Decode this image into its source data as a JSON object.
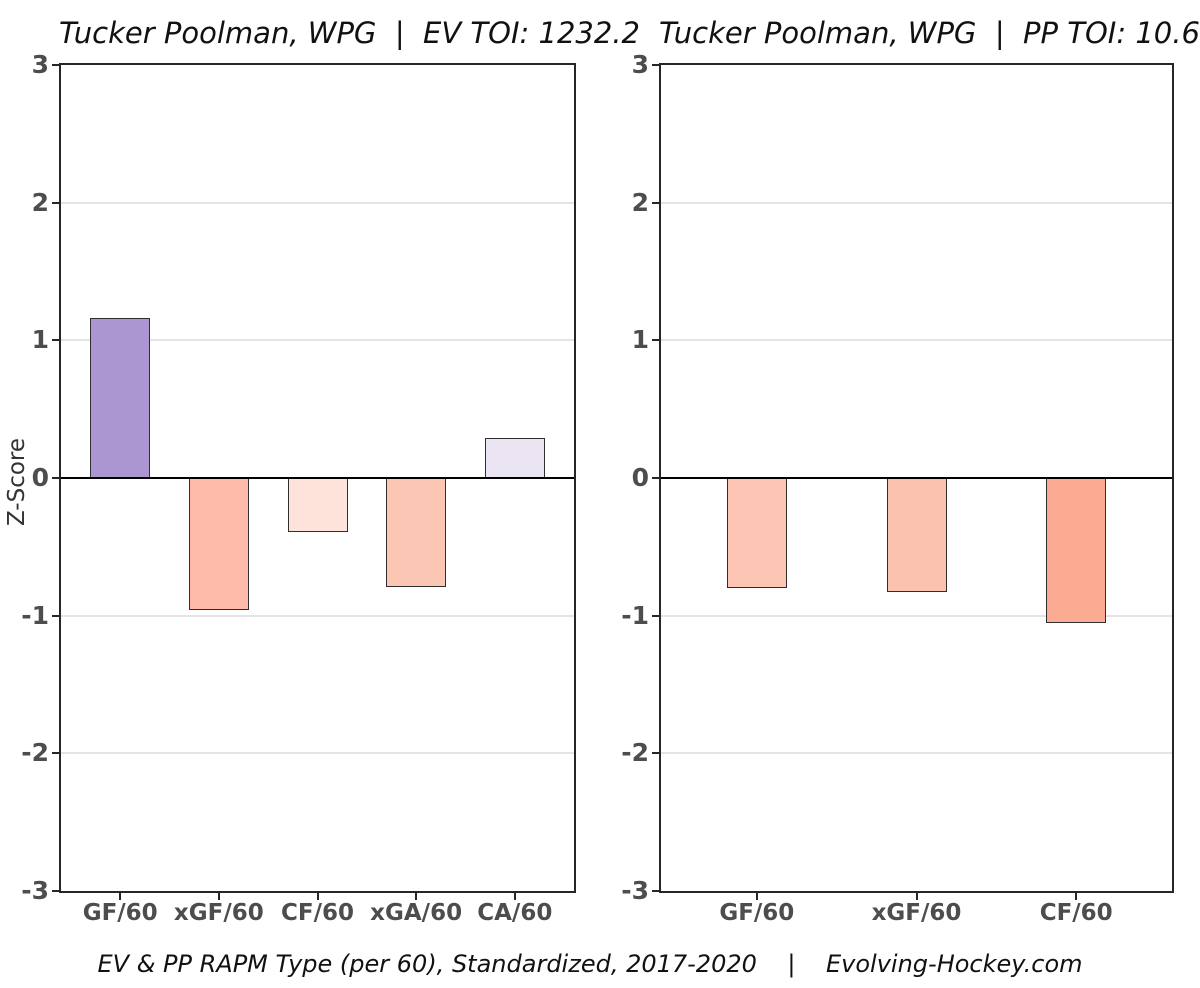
{
  "y_axis_title": "Z-Score",
  "caption": "EV & PP RAPM Type (per 60), Standardized, 2017-2020    |    Evolving-Hockey.com",
  "colors": {
    "background": "#ffffff",
    "panel_border": "#262626",
    "gridline": "#e4e4e4",
    "zero_line": "#000000",
    "axis_text": "#4d4d4d",
    "title_text": "#111111",
    "bar_border": "#2e2e2e"
  },
  "chart_data": [
    {
      "type": "bar",
      "title": "Tucker Poolman, WPG  |  EV TOI: 1232.2",
      "categories": [
        "GF/60",
        "xGF/60",
        "CF/60",
        "xGA/60",
        "CA/60"
      ],
      "values": [
        1.16,
        -0.96,
        -0.39,
        -0.79,
        0.29
      ],
      "bar_colors": [
        "#ab96d1",
        "#fdbaa8",
        "#fee3da",
        "#fcc6b4",
        "#eae4f3"
      ],
      "xlabel": "",
      "ylabel": "Z-Score",
      "ylim": [
        -3,
        3
      ],
      "yticks": [
        -3,
        -2,
        -1,
        0,
        1,
        2,
        3
      ],
      "grid": "horizontal-only",
      "legend": "none"
    },
    {
      "type": "bar",
      "title": "Tucker Poolman, WPG  |  PP TOI: 10.6",
      "categories": [
        "GF/60",
        "xGF/60",
        "CF/60"
      ],
      "values": [
        -0.8,
        -0.83,
        -1.05
      ],
      "bar_colors": [
        "#fdc5b4",
        "#fcc2b0",
        "#fcab93"
      ],
      "xlabel": "",
      "ylabel": "",
      "ylim": [
        -3,
        3
      ],
      "yticks": [
        -3,
        -2,
        -1,
        0,
        1,
        2,
        3
      ],
      "grid": "horizontal-only",
      "legend": "none"
    }
  ]
}
